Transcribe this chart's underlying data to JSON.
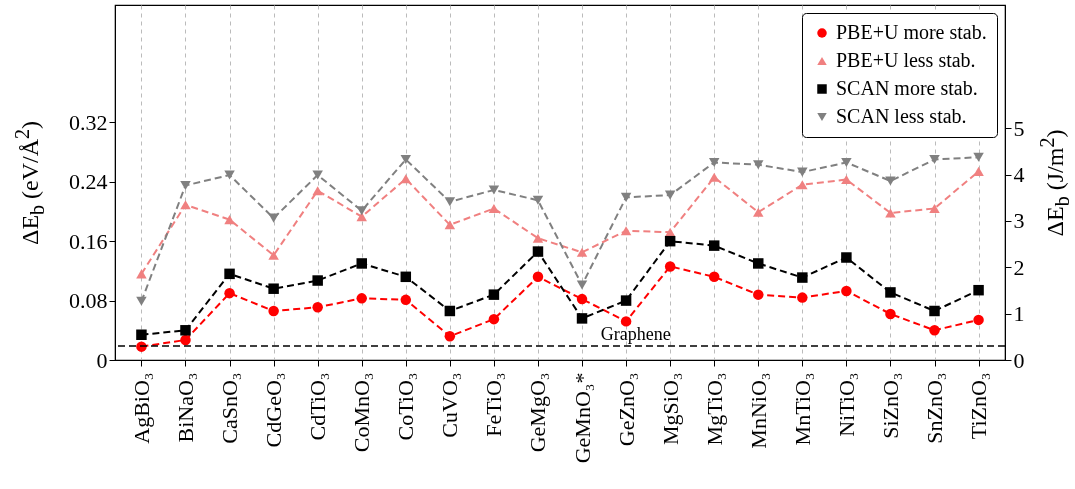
{
  "chart_data": {
    "type": "line",
    "ylabel": "ΔE$_{b}$ (eV/Å$^{2}$)",
    "y2label": "ΔE$_{b}$ (J/m$^{2}$)",
    "categories": [
      "AgBiO₃",
      "BiNaO₃",
      "CaSnO₃",
      "CdGeO₃",
      "CdTiO₃",
      "CoMnO₃",
      "CoTiO₃",
      "CuVO₃",
      "FeTiO₃",
      "GeMgO₃",
      "GeMnO₃*",
      "GeZnO₃",
      "MgSiO₃",
      "MgTiO₃",
      "MnNiO₃",
      "MnTiO₃",
      "NiTiO₃",
      "SiZnO₃",
      "SnZnO₃",
      "TiZnO₃"
    ],
    "ylim": [
      0,
      0.478
    ],
    "yticks": [
      0,
      0.08,
      0.16,
      0.24,
      0.32
    ],
    "y2lim": [
      0,
      7.66
    ],
    "y2ticks": [
      0,
      1,
      2,
      3,
      4,
      5
    ],
    "grid": "x",
    "legend": "top right",
    "ref_lines": [
      {
        "axis": "y",
        "value": 0.019,
        "label": "Graphene",
        "color": "#000000",
        "line_style": "dashed"
      }
    ],
    "series": [
      {
        "name": "PBE+U more stab.",
        "color": "#ff0000",
        "marker": "circle",
        "line_style": "dashed",
        "values": [
          0.018,
          0.027,
          0.09,
          0.066,
          0.071,
          0.083,
          0.081,
          0.032,
          0.055,
          0.112,
          0.082,
          0.052,
          0.126,
          0.112,
          0.088,
          0.084,
          0.093,
          0.062,
          0.04,
          0.054
        ]
      },
      {
        "name": "PBE+U less stab.",
        "color": "#f08080",
        "marker": "triangle",
        "line_style": "dashed",
        "values": [
          0.116,
          0.209,
          0.189,
          0.141,
          0.228,
          0.193,
          0.244,
          0.182,
          0.204,
          0.164,
          0.145,
          0.174,
          0.172,
          0.246,
          0.199,
          0.236,
          0.243,
          0.198,
          0.204,
          0.254
        ]
      },
      {
        "name": "SCAN more stab.",
        "color": "#000000",
        "marker": "square",
        "line_style": "dashed",
        "values": [
          0.034,
          0.04,
          0.116,
          0.096,
          0.107,
          0.13,
          0.112,
          0.066,
          0.088,
          0.146,
          0.056,
          0.08,
          0.16,
          0.154,
          0.13,
          0.111,
          0.138,
          0.091,
          0.066,
          0.094
        ]
      },
      {
        "name": "SCAN less stab.",
        "color": "#808080",
        "marker": "triangle-down",
        "line_style": "dashed",
        "values": [
          0.079,
          0.235,
          0.249,
          0.191,
          0.249,
          0.201,
          0.27,
          0.213,
          0.229,
          0.215,
          0.101,
          0.219,
          0.222,
          0.266,
          0.263,
          0.253,
          0.266,
          0.241,
          0.27,
          0.273
        ]
      }
    ]
  }
}
